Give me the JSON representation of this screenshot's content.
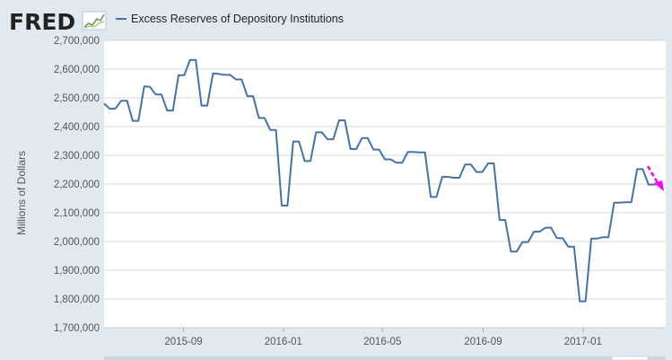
{
  "header": {
    "logo_text": "FRED",
    "logo_icon": "line-chart-icon",
    "legend_label": "Excess Reserves of Depository Institutions"
  },
  "colors": {
    "background": "#e1e9f0",
    "plot_background": "#ffffff",
    "series": "#4572a7",
    "gridline": "#d8d8d8",
    "annotation_arrow": "#ff00ff"
  },
  "chart_data": {
    "type": "line",
    "ylabel": "Millions of Dollars",
    "ylim": [
      1700000,
      2700000
    ],
    "y_ticks": [
      1700000,
      1800000,
      1900000,
      2000000,
      2100000,
      2200000,
      2300000,
      2400000,
      2500000,
      2600000,
      2700000
    ],
    "y_tick_labels": [
      "1,700,000",
      "1,800,000",
      "1,900,000",
      "2,000,000",
      "2,100,000",
      "2,200,000",
      "2,300,000",
      "2,400,000",
      "2,500,000",
      "2,600,000",
      "2,700,000"
    ],
    "xlim": [
      "2015-05-27",
      "2017-04-12"
    ],
    "x_ticks": [
      "2015-09-01",
      "2016-01-01",
      "2016-05-01",
      "2016-09-01",
      "2017-01-01"
    ],
    "x_tick_labels": [
      "2015-09",
      "2016-01",
      "2016-05",
      "2016-09",
      "2017-01"
    ],
    "grid": true,
    "legend_position": "top-left",
    "series": [
      {
        "name": "Excess Reserves of Depository Institutions",
        "frequency": "biweekly",
        "start_date": "2015-05-27",
        "values": [
          2480000,
          2462000,
          2463000,
          2490000,
          2490000,
          2420000,
          2420000,
          2540000,
          2538000,
          2512000,
          2512000,
          2456000,
          2456000,
          2579000,
          2579000,
          2632000,
          2632000,
          2473000,
          2473000,
          2585000,
          2583000,
          2580000,
          2580000,
          2564000,
          2564000,
          2506000,
          2506000,
          2430000,
          2430000,
          2388000,
          2388000,
          2125000,
          2125000,
          2348000,
          2348000,
          2280000,
          2280000,
          2380000,
          2380000,
          2356000,
          2356000,
          2422000,
          2422000,
          2322000,
          2322000,
          2360000,
          2360000,
          2320000,
          2320000,
          2286000,
          2286000,
          2274000,
          2274000,
          2312000,
          2312000,
          2310000,
          2310000,
          2155000,
          2155000,
          2225000,
          2225000,
          2222000,
          2222000,
          2268000,
          2268000,
          2242000,
          2242000,
          2272000,
          2272000,
          2075000,
          2075000,
          1965000,
          1965000,
          1998000,
          1998000,
          2034000,
          2034000,
          2048000,
          2048000,
          2012000,
          2012000,
          1982000,
          1982000,
          1792000,
          1792000,
          2010000,
          2010000,
          2015000,
          2015000,
          2135000,
          2135000,
          2137000,
          2137000,
          2252000,
          2252000,
          2198000,
          2198000,
          2202000
        ]
      }
    ]
  }
}
